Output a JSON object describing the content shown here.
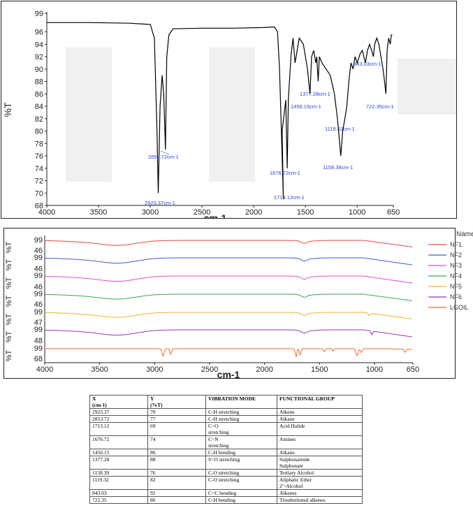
{
  "chart_data": [
    {
      "type": "line",
      "ylabel": "%T",
      "xlabel": "cm-1",
      "x_ticks": [
        4000,
        3500,
        3000,
        2500,
        2000,
        1500,
        1000,
        650
      ],
      "y_ticks": [
        99,
        96,
        94,
        92,
        90,
        88,
        86,
        84,
        82,
        80,
        78,
        76,
        74,
        72,
        70,
        68
      ],
      "xlim": [
        4000,
        650
      ],
      "ylim": [
        68,
        99
      ],
      "grid": false,
      "series": [
        {
          "color": "#000000",
          "x": [
            4000,
            3600,
            3200,
            3000,
            2960,
            2935,
            2923,
            2905,
            2885,
            2870,
            2853,
            2840,
            2820,
            2780,
            2500,
            2200,
            1900,
            1800,
            1770,
            1750,
            1713,
            1725,
            1690,
            1676,
            1665,
            1640,
            1620,
            1600,
            1560,
            1520,
            1480,
            1456,
            1440,
            1420,
            1400,
            1390,
            1377,
            1365,
            1340,
            1300,
            1260,
            1220,
            1190,
            1158,
            1140,
            1119,
            1100,
            1080,
            1060,
            1040,
            1020,
            1000,
            970,
            950,
            920,
            900,
            880,
            860,
            843,
            830,
            810,
            790,
            770,
            750,
            735,
            722,
            710,
            695,
            680,
            670,
            660
          ],
          "y": [
            97.5,
            97.5,
            97.4,
            97.2,
            95,
            80,
            70,
            84,
            89,
            86,
            77,
            92,
            95.5,
            96.5,
            96.6,
            96.6,
            96.7,
            96.8,
            96,
            90,
            69,
            80,
            85,
            74,
            85,
            92,
            95,
            91,
            95,
            94,
            90,
            86,
            92,
            93,
            91,
            92,
            88,
            92,
            91,
            90,
            89,
            86,
            82,
            76,
            80,
            82,
            84,
            88,
            91,
            90,
            92,
            91,
            92.5,
            93,
            91,
            93,
            94,
            93,
            92,
            94,
            95,
            94,
            92,
            90,
            88,
            86,
            93,
            95,
            94,
            95.5,
            95.5
          ]
        }
      ],
      "annotations": [
        "2923.37cm-1",
        "2853.72cm-1",
        "1713.12cm-1",
        "1676.72cm-1",
        "1456.15cm-1",
        "1377.28cm-1",
        "1158.39cm-1",
        "1119.32cm-1",
        "843.03cm-1",
        "722.35cm-1"
      ]
    },
    {
      "type": "line",
      "ylabel": "%T",
      "xlabel": "cm-1",
      "legend_title": "Name",
      "legend_position": "right",
      "x_ticks": [
        4000,
        3500,
        3000,
        2500,
        2000,
        1500,
        1000,
        650
      ],
      "xlim": [
        4000,
        650
      ],
      "grid": false,
      "series": [
        {
          "name": "NF1",
          "color": "#e8463c",
          "ymax": 99,
          "ymin": 46
        },
        {
          "name": "NF2",
          "color": "#3a5bd8",
          "ymax": 99,
          "ymin": 46
        },
        {
          "name": "NF3",
          "color": "#e447d8",
          "ymax": 99,
          "ymin": 46
        },
        {
          "name": "NF4",
          "color": "#3aa847",
          "ymax": 99,
          "ymin": 46
        },
        {
          "name": "NF5",
          "color": "#f2b12a",
          "ymax": 99,
          "ymin": 47
        },
        {
          "name": "NF6",
          "color": "#9a35b5",
          "ymax": 99,
          "ymin": 48
        },
        {
          "name": "LGOIL",
          "color": "#f26a30",
          "ymax": 99,
          "ymin": 68
        }
      ]
    },
    {
      "type": "table",
      "headers": [
        {
          "line1": "X",
          "line2": "(cm-1)"
        },
        {
          "line1": "Y",
          "line2": "(%T)"
        },
        {
          "line1": "VIBRATION MODE",
          "line2": ""
        },
        {
          "line1": "FUNCTIONAL GROUP",
          "line2": ""
        }
      ],
      "rows": [
        {
          "x": "2923.37",
          "y": "70",
          "mode": [
            "C-H stretching"
          ],
          "group": [
            "Alkene"
          ]
        },
        {
          "x": "2853.72",
          "y": "77",
          "mode": [
            "C-H stretching"
          ],
          "group": [
            "Alkane"
          ]
        },
        {
          "x": "1713.12",
          "y": "69",
          "mode": [
            "C=O",
            "stretching"
          ],
          "group": [
            "Acid Halide"
          ]
        },
        {
          "x": "1676.72",
          "y": "74",
          "mode": [
            "C=N",
            "stretching"
          ],
          "group": [
            "Amines"
          ]
        },
        {
          "x": "1456.15",
          "y": "86",
          "mode": [
            "C-H bending"
          ],
          "group": [
            "Alkane"
          ]
        },
        {
          "x": "1377.28",
          "y": "88",
          "mode": [
            "S=O stretching"
          ],
          "group": [
            "Sulphonamide",
            "Sulphonate"
          ]
        },
        {
          "x": "1158.39",
          "y": "76",
          "mode": [
            "C-O stretching"
          ],
          "group": [
            "Tertiary Alcohol"
          ]
        },
        {
          "x": "1119.32",
          "y": "82",
          "mode": [
            "C-O stretching"
          ],
          "group": [
            "Aliphatic Ether",
            "2°-Alcohol"
          ]
        },
        {
          "x": "843.03",
          "y": "92",
          "mode": [
            " C=C bending"
          ],
          "group": [
            "Alkenes"
          ]
        },
        {
          "x": "722.35",
          "y": "86",
          "mode": [
            "C-H bending"
          ],
          "group": [
            "Trisubstituted alkenes"
          ]
        }
      ]
    }
  ]
}
